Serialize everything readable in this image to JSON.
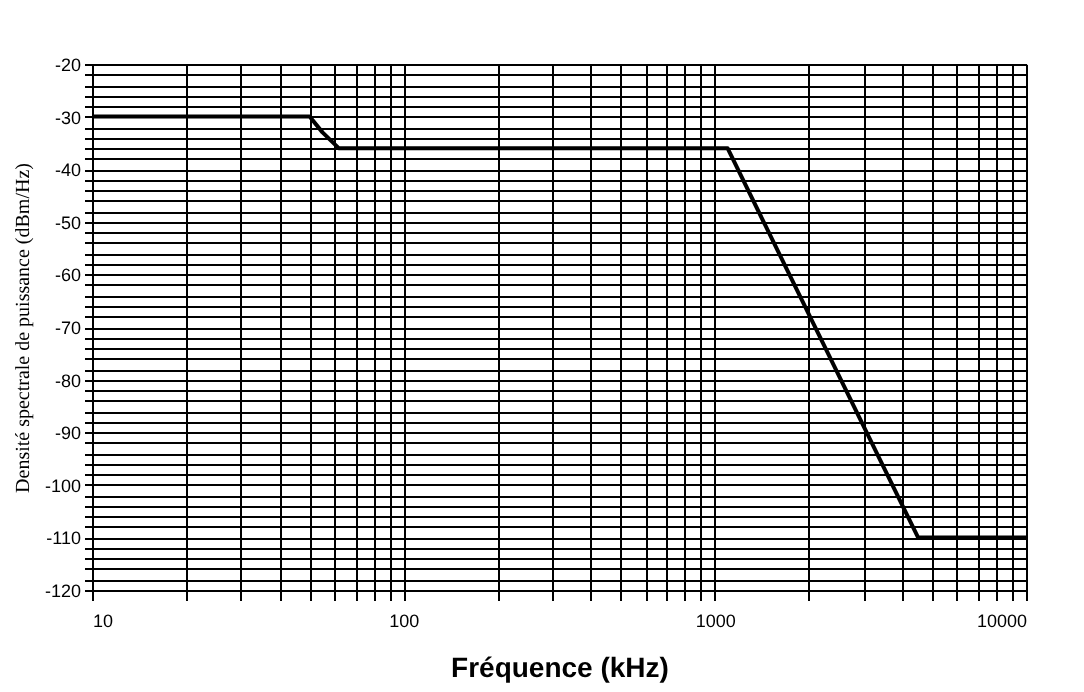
{
  "chart_data": {
    "type": "line",
    "xlabel": "Fréquence (kHz)",
    "ylabel": "Densité spectrale de puissance (dBm/Hz)",
    "x": [
      10,
      50,
      55,
      62,
      1100,
      4500,
      10000
    ],
    "series": [
      {
        "color": "#000000",
        "values": [
          -30,
          -30,
          -33,
          -36,
          -36,
          -110,
          -110
        ]
      }
    ],
    "log": "x",
    "xlim": [
      10,
      10000
    ],
    "ylim": [
      -120,
      -20
    ],
    "xticks": [
      10,
      {
        "value": 20,
        "label": null
      },
      {
        "value": 30,
        "label": null
      },
      {
        "value": 40,
        "label": null
      },
      {
        "value": 50,
        "label": null
      },
      {
        "value": 60,
        "label": null
      },
      {
        "value": 70,
        "label": null
      },
      {
        "value": 80,
        "label": null
      },
      {
        "value": 90,
        "label": null
      },
      100,
      {
        "value": 200,
        "label": null
      },
      {
        "value": 300,
        "label": null
      },
      {
        "value": 400,
        "label": null
      },
      {
        "value": 500,
        "label": null
      },
      {
        "value": 600,
        "label": null
      },
      {
        "value": 700,
        "label": null
      },
      {
        "value": 800,
        "label": null
      },
      {
        "value": 900,
        "label": null
      },
      1000,
      {
        "value": 2000,
        "label": null
      },
      {
        "value": 3000,
        "label": null
      },
      {
        "value": 4000,
        "label": null
      },
      {
        "value": 5000,
        "label": null
      },
      {
        "value": 6000,
        "label": null
      },
      {
        "value": 7000,
        "label": null
      },
      {
        "value": 8000,
        "label": null
      },
      {
        "value": 9000,
        "label": null
      },
      10000
    ],
    "yticks": [
      -120,
      {
        "value": -118,
        "label": null
      },
      {
        "value": -116,
        "label": null
      },
      {
        "value": -114,
        "label": null
      },
      {
        "value": -112,
        "label": null
      },
      -110,
      {
        "value": -108,
        "label": null
      },
      {
        "value": -106,
        "label": null
      },
      {
        "value": -104,
        "label": null
      },
      {
        "value": -102,
        "label": null
      },
      -100,
      {
        "value": -98,
        "label": null
      },
      {
        "value": -96,
        "label": null
      },
      {
        "value": -94,
        "label": null
      },
      {
        "value": -92,
        "label": null
      },
      -90,
      {
        "value": -88,
        "label": null
      },
      {
        "value": -86,
        "label": null
      },
      {
        "value": -84,
        "label": null
      },
      {
        "value": -82,
        "label": null
      },
      -80,
      {
        "value": -78,
        "label": null
      },
      {
        "value": -76,
        "label": null
      },
      {
        "value": -74,
        "label": null
      },
      {
        "value": -72,
        "label": null
      },
      -70,
      {
        "value": -68,
        "label": null
      },
      {
        "value": -66,
        "label": null
      },
      {
        "value": -64,
        "label": null
      },
      {
        "value": -62,
        "label": null
      },
      -60,
      {
        "value": -58,
        "label": null
      },
      {
        "value": -56,
        "label": null
      },
      {
        "value": -54,
        "label": null
      },
      {
        "value": -52,
        "label": null
      },
      -50,
      {
        "value": -48,
        "label": null
      },
      {
        "value": -46,
        "label": null
      },
      {
        "value": -44,
        "label": null
      },
      {
        "value": -42,
        "label": null
      },
      -40,
      {
        "value": -38,
        "label": null
      },
      {
        "value": -36,
        "label": null
      },
      {
        "value": -34,
        "label": null
      },
      {
        "value": -32,
        "label": null
      },
      -30,
      {
        "value": -28,
        "label": null
      },
      {
        "value": -26,
        "label": null
      },
      {
        "value": -24,
        "label": null
      },
      {
        "value": -22,
        "label": null
      },
      -20
    ],
    "grid": true,
    "line_style": "solid",
    "marker": "none"
  }
}
